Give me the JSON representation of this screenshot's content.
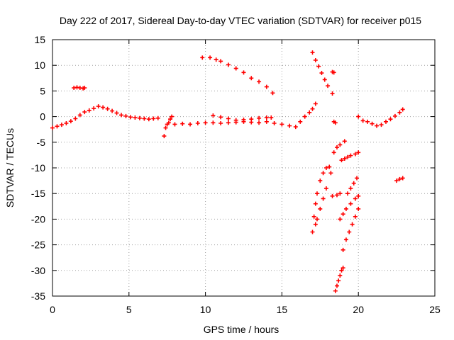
{
  "chart_data": {
    "type": "scatter",
    "title": "Day 222 of 2017, Sidereal Day-to-day VTEC variation (SDTVAR) for receiver p015",
    "xlabel": "GPS time / hours",
    "ylabel": "SDTVAR / TECUs",
    "xlim": [
      0,
      25
    ],
    "ylim": [
      -35,
      15
    ],
    "xticks": [
      0,
      5,
      10,
      15,
      20,
      25
    ],
    "yticks": [
      -35,
      -30,
      -25,
      -20,
      -15,
      -10,
      -5,
      0,
      5,
      10,
      15
    ],
    "xtick_labels": [
      "0",
      "5",
      "10",
      "15",
      "20",
      "25"
    ],
    "ytick_labels": [
      "-35",
      "-30",
      "-25",
      "-20",
      "-15",
      "-10",
      "-5",
      "0",
      "5",
      "10",
      "15"
    ],
    "grid": true,
    "legend": "none",
    "marker": "plus",
    "color": "#ff0000",
    "series": [
      {
        "x": [
          0.0,
          0.3,
          0.6,
          0.9,
          1.2,
          1.5,
          1.8,
          2.1,
          2.4,
          2.7,
          3.0,
          3.3,
          3.6,
          3.9,
          4.2,
          4.5,
          4.8,
          5.1,
          5.4,
          5.7,
          6.0,
          6.3,
          6.6,
          6.9
        ],
        "y": [
          -2.2,
          -1.9,
          -1.6,
          -1.3,
          -0.9,
          -0.4,
          0.3,
          0.9,
          1.2,
          1.6,
          2.0,
          1.8,
          1.5,
          1.1,
          0.7,
          0.3,
          0.1,
          -0.1,
          -0.2,
          -0.3,
          -0.4,
          -0.5,
          -0.4,
          -0.3
        ]
      },
      {
        "x": [
          1.4,
          1.6,
          1.8,
          2.0,
          2.1
        ],
        "y": [
          5.6,
          5.7,
          5.6,
          5.5,
          5.6
        ]
      },
      {
        "x": [
          7.3,
          7.4,
          7.5,
          7.6,
          7.7,
          7.8
        ],
        "y": [
          -3.8,
          -2.2,
          -1.5,
          -1.2,
          -0.5,
          0.0
        ]
      },
      {
        "x": [
          8.0,
          8.5,
          9.0,
          9.5,
          10.0,
          10.5,
          11.0,
          11.5,
          12.0,
          12.5,
          13.0,
          13.5,
          14.0,
          14.5,
          15.0,
          15.5,
          15.9
        ],
        "y": [
          -1.5,
          -1.4,
          -1.5,
          -1.3,
          -1.2,
          -1.2,
          -1.3,
          -1.2,
          -1.1,
          -1.0,
          -1.1,
          -1.2,
          -1.0,
          -1.3,
          -1.5,
          -1.8,
          -2.0
        ]
      },
      {
        "x": [
          10.5,
          11.0,
          11.5,
          12.0,
          12.5,
          13.0,
          13.5,
          14.0,
          14.3
        ],
        "y": [
          0.2,
          -0.1,
          -0.4,
          -0.7,
          -0.6,
          -0.5,
          -0.3,
          -0.2,
          -0.2
        ]
      },
      {
        "x": [
          9.8,
          10.3,
          10.7,
          11.0,
          11.5,
          12.0,
          12.5,
          13.0,
          13.5,
          14.0,
          14.4
        ],
        "y": [
          11.5,
          11.5,
          11.1,
          10.8,
          10.1,
          9.4,
          8.6,
          7.5,
          6.8,
          5.8,
          4.6
        ]
      },
      {
        "x": [
          16.2,
          16.5,
          16.8,
          17.0,
          17.2
        ],
        "y": [
          -1.0,
          0.0,
          0.8,
          1.5,
          2.5
        ]
      },
      {
        "x": [
          17.0,
          17.2,
          17.4,
          17.6,
          17.8,
          18.0,
          18.3
        ],
        "y": [
          12.5,
          11.0,
          9.8,
          8.5,
          7.2,
          6.0,
          4.5
        ]
      },
      {
        "x": [
          18.3,
          18.4
        ],
        "y": [
          8.7,
          8.6
        ]
      },
      {
        "x": [
          18.4,
          18.5
        ],
        "y": [
          -1.0,
          -1.2
        ]
      },
      {
        "x": [
          17.0,
          17.1,
          17.2,
          17.3,
          17.5,
          17.7,
          17.9,
          18.1
        ],
        "y": [
          -22.5,
          -19.5,
          -17.0,
          -15.0,
          -12.5,
          -11.0,
          -10.0,
          -9.8
        ]
      },
      {
        "x": [
          17.2,
          17.3,
          17.5,
          17.7,
          17.9,
          18.2
        ],
        "y": [
          -21.0,
          -20.0,
          -18.0,
          -16.0,
          -14.0,
          -11.0
        ]
      },
      {
        "x": [
          18.4,
          18.6,
          18.8,
          19.1
        ],
        "y": [
          -7.0,
          -6.0,
          -5.5,
          -4.8
        ]
      },
      {
        "x": [
          18.3,
          18.6,
          18.8
        ],
        "y": [
          -15.5,
          -15.3,
          -15.0
        ]
      },
      {
        "x": [
          18.9,
          19.1,
          19.3,
          19.5,
          19.8,
          20.0
        ],
        "y": [
          -8.5,
          -8.2,
          -7.9,
          -7.6,
          -7.3,
          -7.0
        ]
      },
      {
        "x": [
          19.3,
          19.5,
          19.7,
          19.9
        ],
        "y": [
          -15.0,
          -14.0,
          -13.0,
          -12.0
        ]
      },
      {
        "x": [
          18.8,
          19.0,
          19.2,
          19.5,
          19.8,
          20.0
        ],
        "y": [
          -20.0,
          -19.0,
          -18.0,
          -17.0,
          -16.0,
          -15.5
        ]
      },
      {
        "x": [
          19.0,
          19.2,
          19.4,
          19.6,
          19.8,
          20.0
        ],
        "y": [
          -26.0,
          -24.0,
          -22.5,
          -21.0,
          -19.5,
          -18.0
        ]
      },
      {
        "x": [
          18.5,
          18.6,
          18.7,
          18.8,
          18.9,
          19.0
        ],
        "y": [
          -34.0,
          -33.0,
          -32.0,
          -31.0,
          -30.0,
          -29.5
        ]
      },
      {
        "x": [
          20.0,
          20.3,
          20.6,
          20.9,
          21.2,
          21.5,
          21.8,
          22.1,
          22.4,
          22.7,
          22.9
        ],
        "y": [
          0.0,
          -0.8,
          -1.0,
          -1.4,
          -1.8,
          -1.6,
          -1.0,
          -0.5,
          0.1,
          0.8,
          1.4
        ]
      },
      {
        "x": [
          22.5,
          22.7,
          22.9
        ],
        "y": [
          -12.5,
          -12.2,
          -12.0
        ]
      }
    ]
  }
}
